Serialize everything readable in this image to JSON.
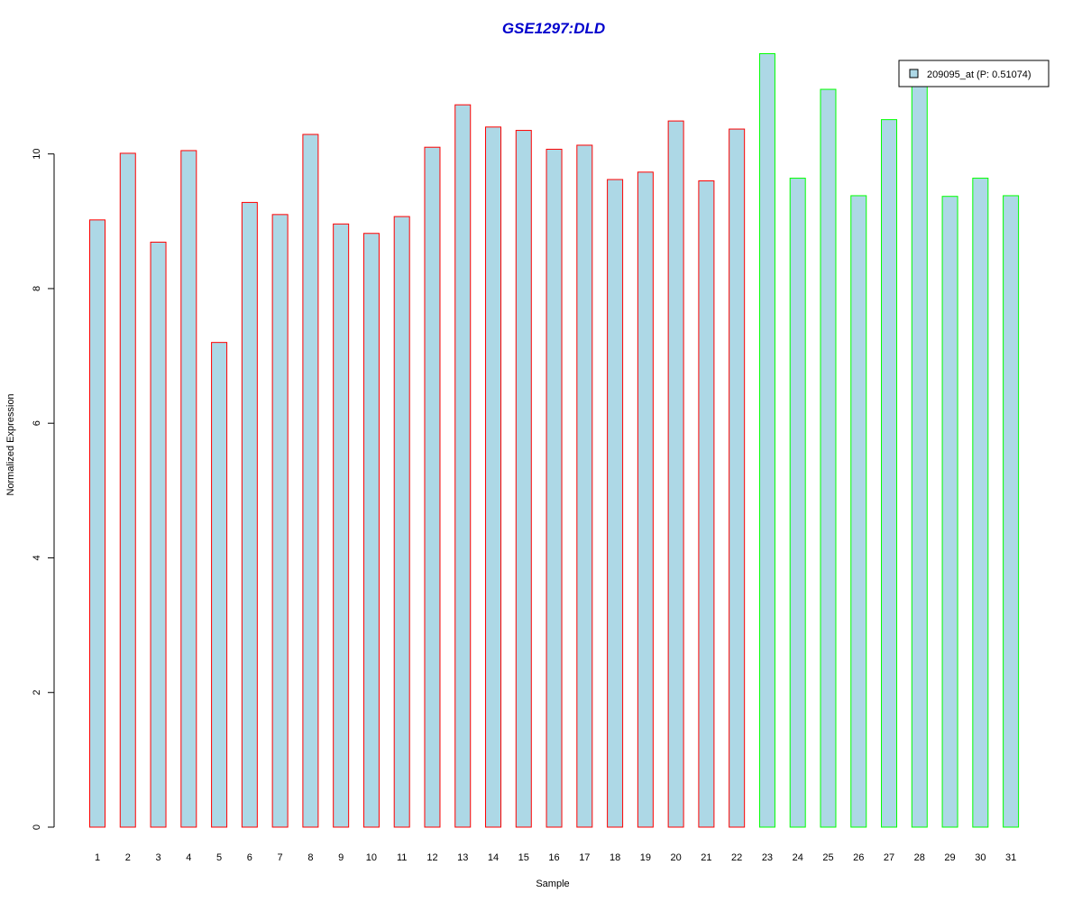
{
  "chart_data": {
    "type": "bar",
    "title": "GSE1297:DLD",
    "xlabel": "Sample",
    "ylabel": "Normalized Expression",
    "ylim": [
      0,
      11.55
    ],
    "yticks": [
      0,
      2,
      4,
      6,
      8,
      10
    ],
    "grid": false,
    "legend_position": "top-right",
    "categories": [
      "1",
      "2",
      "3",
      "4",
      "5",
      "6",
      "7",
      "8",
      "9",
      "10",
      "11",
      "12",
      "13",
      "14",
      "15",
      "16",
      "17",
      "18",
      "19",
      "20",
      "21",
      "22",
      "23",
      "24",
      "25",
      "26",
      "27",
      "28",
      "29",
      "30",
      "31"
    ],
    "series": [
      {
        "name": "209095_at (P: 0.51074)",
        "fill": "#add8e6",
        "values": [
          9.02,
          10.01,
          8.69,
          10.05,
          7.2,
          9.28,
          9.1,
          10.29,
          8.96,
          8.82,
          9.07,
          10.1,
          10.73,
          10.4,
          10.35,
          10.07,
          10.13,
          9.62,
          9.73,
          10.49,
          9.6,
          10.37,
          11.49,
          9.64,
          10.96,
          9.38,
          10.51,
          11.02,
          9.37,
          9.64,
          9.38
        ]
      }
    ],
    "groups": [
      {
        "from": 1,
        "to": 22,
        "border": "#ff0000"
      },
      {
        "from": 23,
        "to": 31,
        "border": "#00ff00"
      }
    ],
    "title_color": "#0000cd"
  }
}
